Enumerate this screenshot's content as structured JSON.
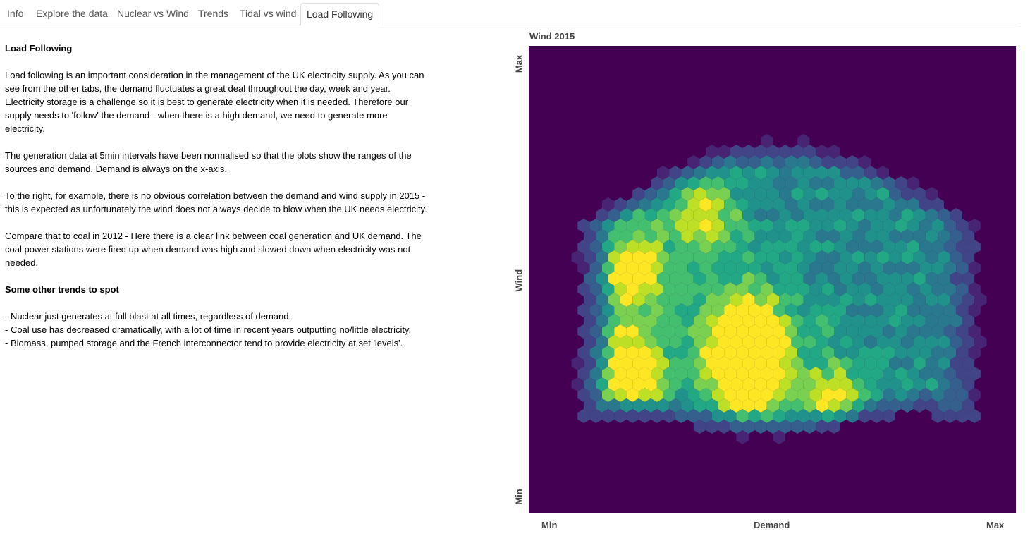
{
  "tabs": [
    {
      "label": "Info",
      "active": false
    },
    {
      "label": "Explore the data",
      "active": false
    },
    {
      "label": "Nuclear vs Wind",
      "active": false
    },
    {
      "label": "Trends",
      "active": false
    },
    {
      "label": "Tidal vs wind",
      "active": false
    },
    {
      "label": "Load Following",
      "active": true
    }
  ],
  "content": {
    "heading": "Load Following",
    "p1": "Load following is an important consideration in the management of the UK electricity supply. As you can see from the other tabs, the demand fluctuates a great deal throughout the day, week and year. Electricity storage is a challenge so it is best to generate electricity when it is needed. Therefore our supply needs to 'follow' the demand - when there is a high demand, we need to generate more electricity.",
    "p2": "The generation data at 5min intervals have been normalised so that the plots show the ranges of the sources and demand. Demand is always on the x-axis.",
    "p3": "To the right, for example, there is no obvious correlation between the demand and wind supply in 2015 - this is expected as unfortunately the wind does not always decide to blow when the UK needs electricity.",
    "p4": "Compare that to coal in 2012 - Here there is a clear link between coal generation and UK demand. The coal power stations were fired up when demand was high and slowed down when electricity was not needed.",
    "subheading": "Some other trends to spot",
    "bullets": [
      "- Nuclear just generates at full blast at all times, regardless of demand.",
      "- Coal use has decreased dramatically, with a lot of time in recent years outputting no/little electricity.",
      "- Biomass, pumped storage and the French interconnector tend to provide electricity at set 'levels'."
    ]
  },
  "chart_data": {
    "type": "heatmap",
    "subtype": "hexbin",
    "title": "Wind 2015",
    "xlabel": "Demand",
    "ylabel": "Wind",
    "x_ticks": [
      "Min",
      "Max"
    ],
    "y_ticks": [
      "Min",
      "Max"
    ],
    "xlim": [
      0,
      1
    ],
    "ylim": [
      0,
      1
    ],
    "colormap": "viridis",
    "background": "#440154",
    "hotspots": [
      {
        "x": 0.2,
        "y": 0.3,
        "density": 1.0
      },
      {
        "x": 0.45,
        "y": 0.3,
        "density": 1.0
      },
      {
        "x": 0.45,
        "y": 0.37,
        "density": 0.95
      },
      {
        "x": 0.21,
        "y": 0.52,
        "density": 0.8
      },
      {
        "x": 0.63,
        "y": 0.22,
        "density": 0.85
      },
      {
        "x": 0.36,
        "y": 0.64,
        "density": 0.6
      }
    ]
  }
}
